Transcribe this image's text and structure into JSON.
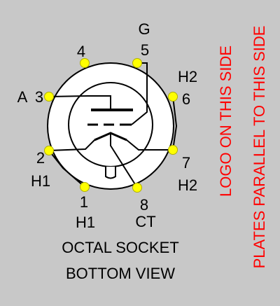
{
  "colors": {
    "background": "#c8c8c8",
    "socket_face": "#ffffff",
    "pin_fill": "#ffff00",
    "pin_stroke": "#b0b000",
    "line": "#000000",
    "note": "#ff0000"
  },
  "pins": [
    {
      "number": "1",
      "label": "H1"
    },
    {
      "number": "2",
      "label": "H1"
    },
    {
      "number": "3",
      "label": "A"
    },
    {
      "number": "4",
      "label": ""
    },
    {
      "number": "5",
      "label": "G"
    },
    {
      "number": "6",
      "label": "H2"
    },
    {
      "number": "7",
      "label": "H2"
    },
    {
      "number": "8",
      "label": "CT"
    }
  ],
  "caption": {
    "line1": "OCTAL SOCKET",
    "line2": "BOTTOM VIEW"
  },
  "notes": {
    "logo": "LOGO  ON  THIS  SIDE",
    "plates": "PLATES PARALLEL TO THIS SIDE"
  }
}
